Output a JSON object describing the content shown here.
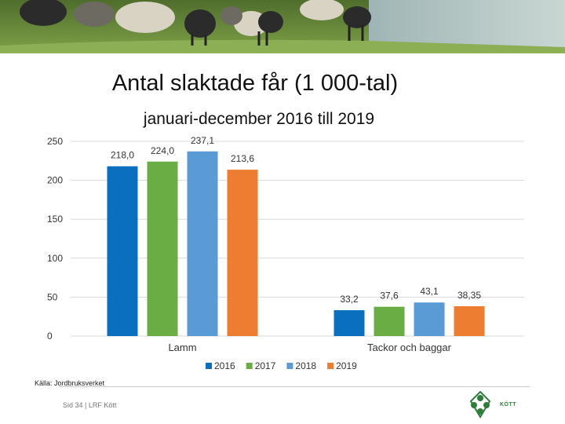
{
  "slide": {
    "title": "Antal slaktade får (1 000-tal)",
    "subtitle": "januari-december 2016 till 2019",
    "source": "Källa: Jordbruksverket",
    "page_label": "Sid 34 | LRF Kött",
    "logo_text": "KÖTT",
    "banner_icon": "sheep-photo-banner"
  },
  "chart_data": {
    "type": "bar",
    "title": "Antal slaktade får (1 000-tal)",
    "subtitle": "januari-december 2016 till 2019",
    "categories": [
      "Lamm",
      "Tackor och baggar"
    ],
    "series": [
      {
        "name": "2016",
        "color": "#0b6fbf",
        "values": [
          218.0,
          33.2
        ],
        "labels": [
          "218,0",
          "33,2"
        ]
      },
      {
        "name": "2017",
        "color": "#6aad45",
        "values": [
          224.0,
          37.6
        ],
        "labels": [
          "224,0",
          "37,6"
        ]
      },
      {
        "name": "2018",
        "color": "#5b9bd5",
        "values": [
          237.1,
          43.1
        ],
        "labels": [
          "237,1",
          "43,1"
        ]
      },
      {
        "name": "2019",
        "color": "#ed7d31",
        "values": [
          213.6,
          38.35
        ],
        "labels": [
          "213,6",
          "38,35"
        ]
      }
    ],
    "ylim": [
      0,
      250
    ],
    "yticks": [
      0,
      50,
      100,
      150,
      200,
      250
    ],
    "grid": true,
    "legend_position": "bottom"
  }
}
